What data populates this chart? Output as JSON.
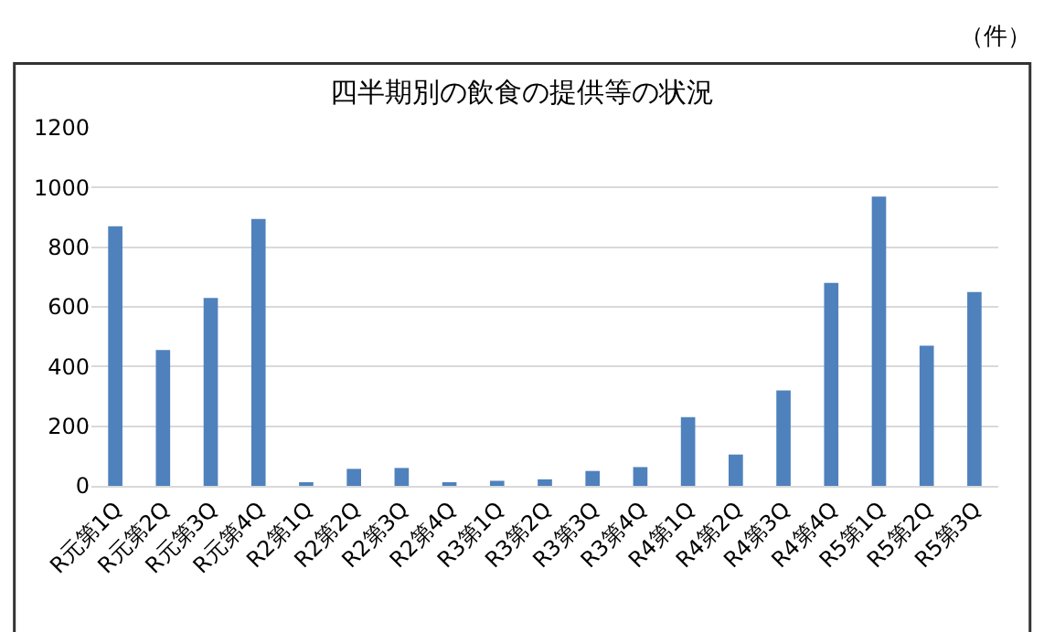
{
  "chart_data": {
    "type": "bar",
    "title": "四半期別の飲食の提供等の状況",
    "annotations": [
      "（件）"
    ],
    "categories": [
      "R元第1Q",
      "R元第2Q",
      "R元第3Q",
      "R元第4Q",
      "R2第1Q",
      "R2第2Q",
      "R2第3Q",
      "R2第4Q",
      "R3第1Q",
      "R3第2Q",
      "R3第3Q",
      "R3第4Q",
      "R4第1Q",
      "R4第2Q",
      "R4第3Q",
      "R4第4Q",
      "R5第1Q",
      "R5第2Q",
      "R5第3Q"
    ],
    "values": [
      870,
      455,
      630,
      895,
      8,
      57,
      60,
      7,
      17,
      22,
      50,
      63,
      230,
      105,
      320,
      680,
      970,
      470,
      650
    ],
    "color": "#4f81bd",
    "ylim": [
      0,
      1200
    ],
    "yticks": [
      0,
      200,
      400,
      600,
      800,
      1000,
      1200
    ],
    "grid": "y",
    "legend": false
  }
}
